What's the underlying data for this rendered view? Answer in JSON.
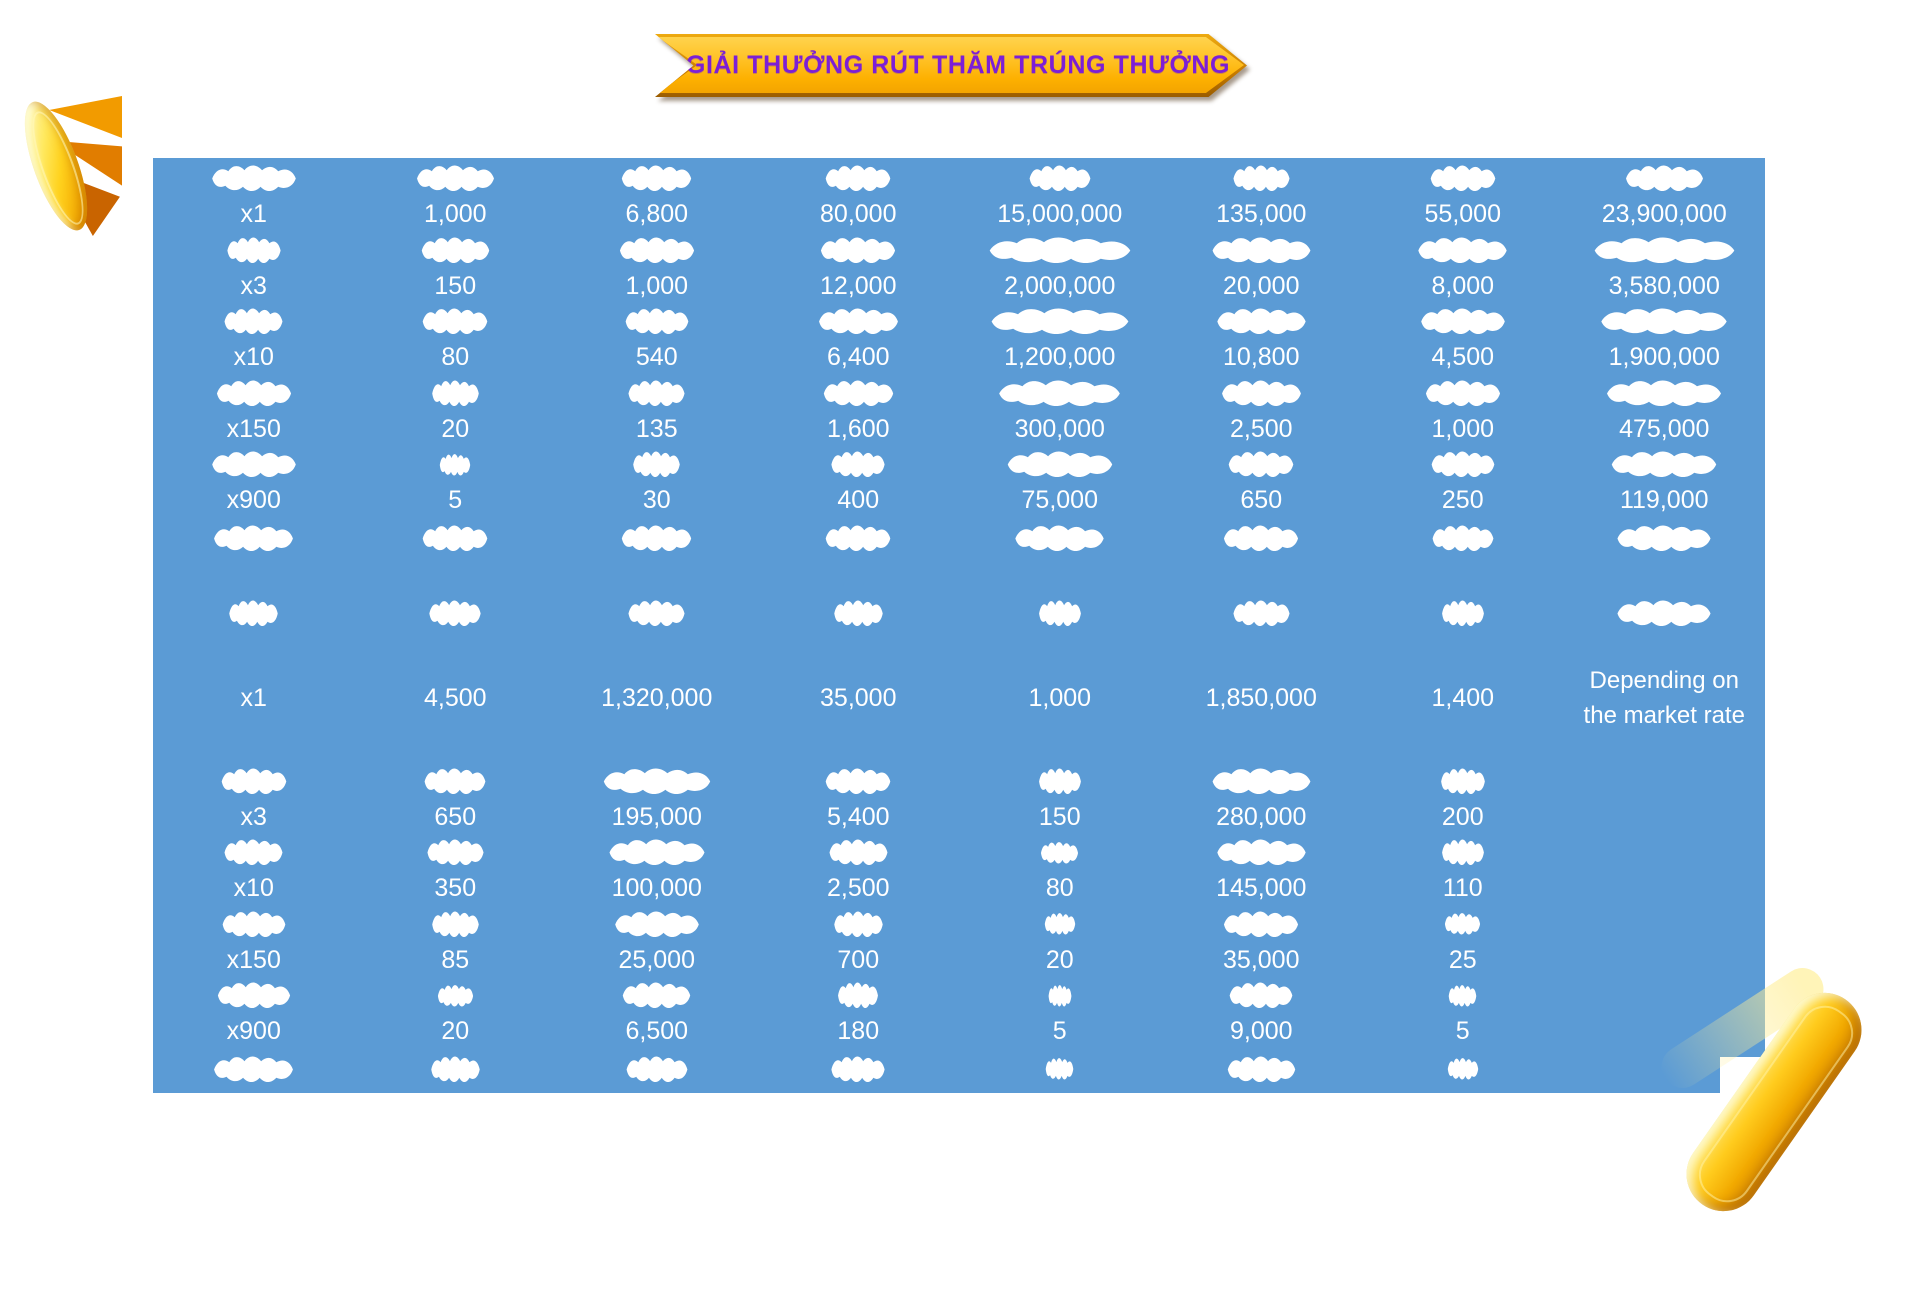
{
  "banner": {
    "title": "GIẢI THƯỞNG RÚT THĂM TRÚNG THƯỞNG"
  },
  "colors": {
    "panel_blue": "#5B9BD5",
    "banner_gold": "#FFC125",
    "banner_edge": "#C87C00",
    "title_purple": "#7C1FD6",
    "value_text": "#FFFFFF",
    "coin_gold": "#FFCB1D",
    "blob_white": "#FFFFFF"
  },
  "note": "Depending on\nthe market rate",
  "table": {
    "sections": [
      {
        "name": "top-section",
        "rows": [
          {
            "kind": "pair",
            "cells": [
              {
                "blob": 88,
                "label": "x1"
              },
              {
                "blob": 81,
                "label": "1,000"
              },
              {
                "blob": 73,
                "label": "6,800"
              },
              {
                "blob": 68,
                "label": "80,000"
              },
              {
                "blob": 64,
                "label": "15,000,000"
              },
              {
                "blob": 59,
                "label": "135,000"
              },
              {
                "blob": 68,
                "label": "55,000"
              },
              {
                "blob": 81,
                "label": "23,900,000"
              }
            ]
          },
          {
            "kind": "pair",
            "cells": [
              {
                "blob": 56,
                "label": "x3"
              },
              {
                "blob": 71,
                "label": "150"
              },
              {
                "blob": 78,
                "label": "1,000"
              },
              {
                "blob": 78,
                "label": "12,000"
              },
              {
                "blob": 148,
                "label": "2,000,000"
              },
              {
                "blob": 103,
                "label": "20,000"
              },
              {
                "blob": 93,
                "label": "8,000"
              },
              {
                "blob": 147,
                "label": "3,580,000"
              }
            ]
          },
          {
            "kind": "pair",
            "cells": [
              {
                "blob": 61,
                "label": "x10"
              },
              {
                "blob": 68,
                "label": "80"
              },
              {
                "blob": 66,
                "label": "540"
              },
              {
                "blob": 83,
                "label": "6,400"
              },
              {
                "blob": 144,
                "label": "1,200,000"
              },
              {
                "blob": 93,
                "label": "10,800"
              },
              {
                "blob": 88,
                "label": "4,500"
              },
              {
                "blob": 132,
                "label": "1,900,000"
              }
            ]
          },
          {
            "kind": "pair",
            "cells": [
              {
                "blob": 78,
                "label": "x150"
              },
              {
                "blob": 49,
                "label": "20"
              },
              {
                "blob": 59,
                "label": "135"
              },
              {
                "blob": 73,
                "label": "1,600"
              },
              {
                "blob": 127,
                "label": "300,000"
              },
              {
                "blob": 83,
                "label": "2,500"
              },
              {
                "blob": 78,
                "label": "1,000"
              },
              {
                "blob": 120,
                "label": "475,000"
              }
            ]
          },
          {
            "kind": "pair",
            "cells": [
              {
                "blob": 88,
                "label": "x900"
              },
              {
                "blob": 32,
                "label": "5"
              },
              {
                "blob": 49,
                "label": "30"
              },
              {
                "blob": 56,
                "label": "400"
              },
              {
                "blob": 110,
                "label": "75,000"
              },
              {
                "blob": 68,
                "label": "650"
              },
              {
                "blob": 66,
                "label": "250"
              },
              {
                "blob": 110,
                "label": "119,000"
              }
            ]
          },
          {
            "kind": "blobs",
            "cells": [
              {
                "blob": 83
              },
              {
                "blob": 68
              },
              {
                "blob": 73
              },
              {
                "blob": 68
              },
              {
                "blob": 93
              },
              {
                "blob": 78
              },
              {
                "blob": 64
              },
              {
                "blob": 98
              }
            ]
          },
          {
            "kind": "spacer",
            "cells": []
          }
        ]
      },
      {
        "name": "bottom-section",
        "rows": [
          {
            "kind": "blobs",
            "cells": [
              {
                "blob": 51
              },
              {
                "blob": 54
              },
              {
                "blob": 59
              },
              {
                "blob": 51
              },
              {
                "blob": 44
              },
              {
                "blob": 59
              },
              {
                "blob": 44
              },
              {
                "blob": 98
              }
            ]
          },
          {
            "kind": "tall",
            "cells": [
              {
                "label": "x1"
              },
              {
                "label": "4,500"
              },
              {
                "label": "1,320,000"
              },
              {
                "label": "35,000"
              },
              {
                "label": "1,000"
              },
              {
                "label": "1,850,000"
              },
              {
                "label": "1,400"
              },
              {
                "label": "Depending on\nthe market rate",
                "is_note": true
              }
            ]
          },
          {
            "kind": "pair",
            "cells": [
              {
                "blob": 68,
                "label": "x3"
              },
              {
                "blob": 64,
                "label": "650"
              },
              {
                "blob": 112,
                "label": "195,000"
              },
              {
                "blob": 68,
                "label": "5,400"
              },
              {
                "blob": 44,
                "label": "150"
              },
              {
                "blob": 103,
                "label": "280,000"
              },
              {
                "blob": 46,
                "label": "200"
              },
              {}
            ]
          },
          {
            "kind": "pair",
            "cells": [
              {
                "blob": 61,
                "label": "x10"
              },
              {
                "blob": 59,
                "label": "350"
              },
              {
                "blob": 100,
                "label": "100,000"
              },
              {
                "blob": 61,
                "label": "2,500"
              },
              {
                "blob": 39,
                "label": "80"
              },
              {
                "blob": 93,
                "label": "145,000"
              },
              {
                "blob": 44,
                "label": "110"
              },
              {}
            ]
          },
          {
            "kind": "pair",
            "cells": [
              {
                "blob": 66,
                "label": "x150"
              },
              {
                "blob": 49,
                "label": "85"
              },
              {
                "blob": 88,
                "label": "25,000"
              },
              {
                "blob": 51,
                "label": "700"
              },
              {
                "blob": 32,
                "label": "20"
              },
              {
                "blob": 78,
                "label": "35,000"
              },
              {
                "blob": 37,
                "label": "25"
              },
              {}
            ]
          },
          {
            "kind": "pair",
            "cells": [
              {
                "blob": 76,
                "label": "x900"
              },
              {
                "blob": 37,
                "label": "20"
              },
              {
                "blob": 71,
                "label": "6,500"
              },
              {
                "blob": 42,
                "label": "180"
              },
              {
                "blob": 24,
                "label": "5"
              },
              {
                "blob": 66,
                "label": "9,000"
              },
              {
                "blob": 29,
                "label": "5"
              },
              {}
            ]
          },
          {
            "kind": "blobs",
            "cells": [
              {
                "blob": 83
              },
              {
                "blob": 51
              },
              {
                "blob": 64
              },
              {
                "blob": 56
              },
              {
                "blob": 29
              },
              {
                "blob": 71
              },
              {
                "blob": 32
              },
              {}
            ]
          }
        ]
      }
    ]
  }
}
